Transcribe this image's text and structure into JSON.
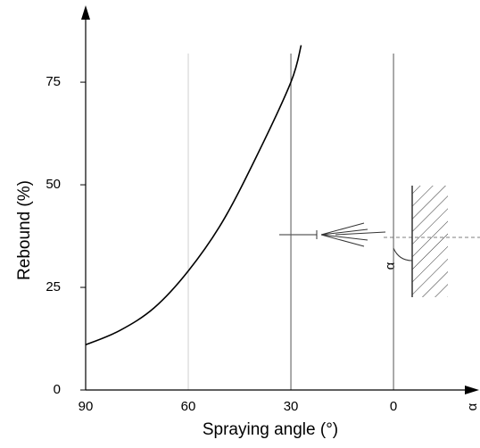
{
  "chart_data": {
    "type": "line",
    "x_label": "Spraying angle (°)",
    "y_label": "Rebound (%)",
    "x": [
      90,
      80,
      70,
      60,
      50,
      40,
      30,
      27
    ],
    "series": [
      {
        "color": "#000000",
        "values": [
          11,
          14.5,
          20,
          29,
          41,
          57,
          75,
          84
        ]
      }
    ],
    "xlim": [
      90,
      -24.5
    ],
    "ylim": [
      0,
      93.5
    ],
    "xticks": [
      90,
      60,
      30,
      0
    ],
    "yticks": [
      0,
      25,
      50,
      75
    ],
    "grid": true,
    "grid_colors": [
      "none",
      "#d0d0d0",
      "#555555",
      "#555555"
    ],
    "annotations": [
      "α",
      "α"
    ]
  }
}
